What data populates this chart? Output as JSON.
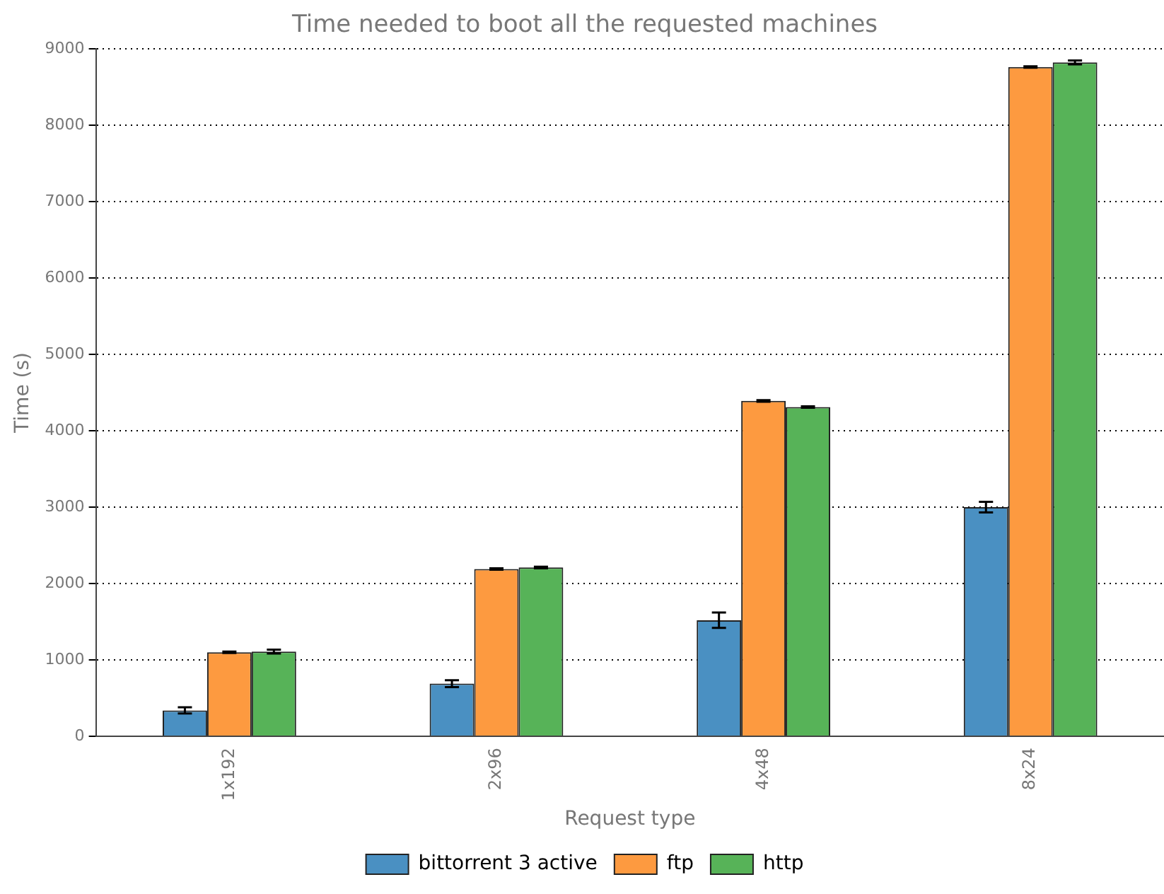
{
  "chart_data": {
    "type": "bar",
    "title": "Time needed to boot all the requested machines",
    "xlabel": "Request type",
    "ylabel": "Time (s)",
    "categories": [
      "1x192",
      "2x96",
      "4x48",
      "8x24"
    ],
    "series": [
      {
        "name": "bittorrent 3 active",
        "color": "#4a90c2",
        "values": [
          340,
          690,
          1520,
          3000
        ],
        "errors": [
          40,
          45,
          100,
          70
        ]
      },
      {
        "name": "ftp",
        "color": "#fd9a40",
        "values": [
          1100,
          2190,
          4390,
          8760
        ],
        "errors": [
          10,
          10,
          10,
          10
        ]
      },
      {
        "name": "http",
        "color": "#57b358",
        "values": [
          1110,
          2210,
          4310,
          8820
        ],
        "errors": [
          25,
          10,
          10,
          25
        ]
      }
    ],
    "ylim": [
      0,
      9000
    ],
    "yticks": [
      0,
      1000,
      2000,
      3000,
      4000,
      5000,
      6000,
      7000,
      8000,
      9000
    ],
    "grid": "y",
    "legend": "bottom"
  }
}
